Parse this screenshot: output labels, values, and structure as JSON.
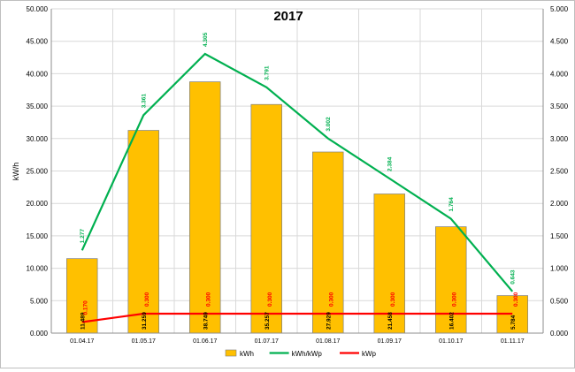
{
  "chart_data": {
    "type": "bar",
    "title": "2017",
    "xlabel": "",
    "ylabel": "kW/h",
    "y2label": "",
    "categories": [
      "01.04.17",
      "01.05.17",
      "01.06.17",
      "01.07.17",
      "01.08.17",
      "01.09.17",
      "01.10.17",
      "01.11.17"
    ],
    "ylim": [
      0,
      50000
    ],
    "y2lim": [
      0,
      5000
    ],
    "y_ticks": [
      "0.000",
      "5.000",
      "10.000",
      "15.000",
      "20.000",
      "25.000",
      "30.000",
      "35.000",
      "40.000",
      "45.000",
      "50.000"
    ],
    "y2_ticks": [
      "0.000",
      "0.500",
      "1.000",
      "1.500",
      "2.000",
      "2.500",
      "3.000",
      "3.500",
      "4.000",
      "4.500",
      "5.000"
    ],
    "grid": true,
    "legend_position": "bottom",
    "series": [
      {
        "name": "kWh",
        "kind": "bar",
        "axis": "left",
        "color": "#FFC000",
        "values": [
          11489,
          31259,
          38749,
          35257,
          27929,
          21458,
          16402,
          5784
        ],
        "labels": [
          "11.489",
          "31.259",
          "38.749",
          "35.257",
          "27.929",
          "21.458",
          "16.402",
          "5.784"
        ]
      },
      {
        "name": "kWh/kWp",
        "kind": "line",
        "axis": "right",
        "color": "#00B050",
        "values": [
          1277,
          3361,
          4305,
          3791,
          3002,
          2384,
          1764,
          643
        ],
        "labels": [
          "1.277",
          "3.361",
          "4.305",
          "3.791",
          "3.002",
          "2.384",
          "1.764",
          "0.643"
        ]
      },
      {
        "name": "kWp",
        "kind": "line",
        "axis": "right",
        "color": "#FF0000",
        "values": [
          170,
          300,
          300,
          300,
          300,
          300,
          300,
          300
        ],
        "labels": [
          "0.170",
          "0.300",
          "0.300",
          "0.300",
          "0.300",
          "0.300",
          "0.300",
          "0.300"
        ]
      }
    ]
  }
}
